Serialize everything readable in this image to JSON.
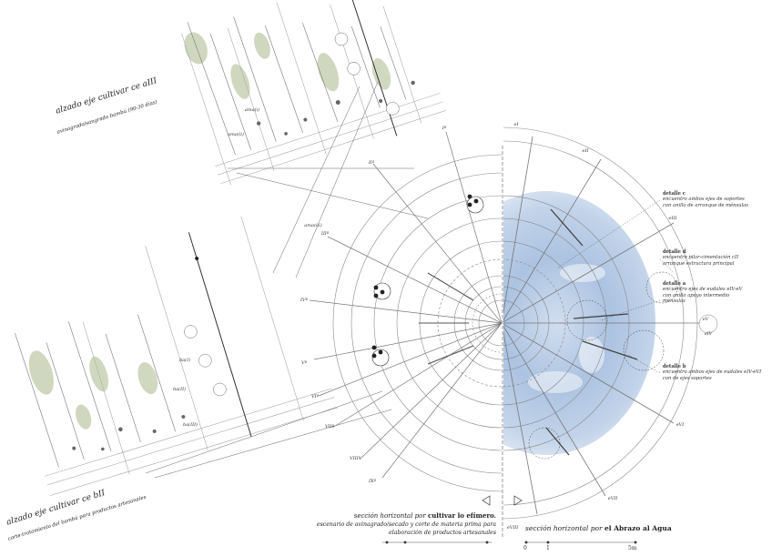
{
  "left_elevation_upper": {
    "title": "alzado eje cultivar ce aIII",
    "subtitle": "avinagrado/sangrado bambú (90-30 días)",
    "tags": [
      "ama(i)",
      "ama(ii)",
      "ama(iii)"
    ]
  },
  "left_elevation_lower": {
    "title": "alzado eje cultivar ce bII",
    "subtitle": "corte-tratamiento del bambú para productos artesanales",
    "tags": [
      "ba(I)",
      "ba(II)",
      "ba(III)"
    ]
  },
  "left_section_caption": {
    "line1_prefix": "sección horizontal por ",
    "line1_bold": "cultivar lo efímero.",
    "line2": "escenario de avinagrado/secado y corte de materia prima para",
    "line3": "elaboración de productos artesanales"
  },
  "right_section_caption": {
    "prefix": "sección horizontal por ",
    "bold": "el Abrazo al Agua"
  },
  "left_axis_labels": [
    "Iª",
    "IIª",
    "IIIª",
    "IVª",
    "Vª",
    "VIª",
    "VIIª",
    "VIIIª",
    "IXª"
  ],
  "right_axis_labels": [
    "eI",
    "eII",
    "eIII",
    "eIV",
    "eV",
    "eVI",
    "eVII",
    "eVIII"
  ],
  "details": [
    {
      "title": "detalle c",
      "line1": "encuentro ambos ejes de soportes",
      "line2": "con anillo de arranque de ménsulas"
    },
    {
      "title": "detalle d",
      "line1": "encuentro pilar-cimentación cII",
      "line2": "arranque estructura principal"
    },
    {
      "title": "detalle a",
      "line1": "encuentro ejes de eudales eIV-eV",
      "line2": "con anillo apoyo intermedio",
      "line3": "ménsulas"
    },
    {
      "title": "detalle b",
      "line1": "encuentro ambos ejes de eudales eIV-eVI",
      "line2": "con de ejes soportes"
    }
  ],
  "scale_bar": {
    "labels": [
      "0",
      "1",
      "5m"
    ]
  },
  "colors": {
    "water": "#9fb9db",
    "ink": "#333333",
    "foliage": "#a9b98c"
  }
}
